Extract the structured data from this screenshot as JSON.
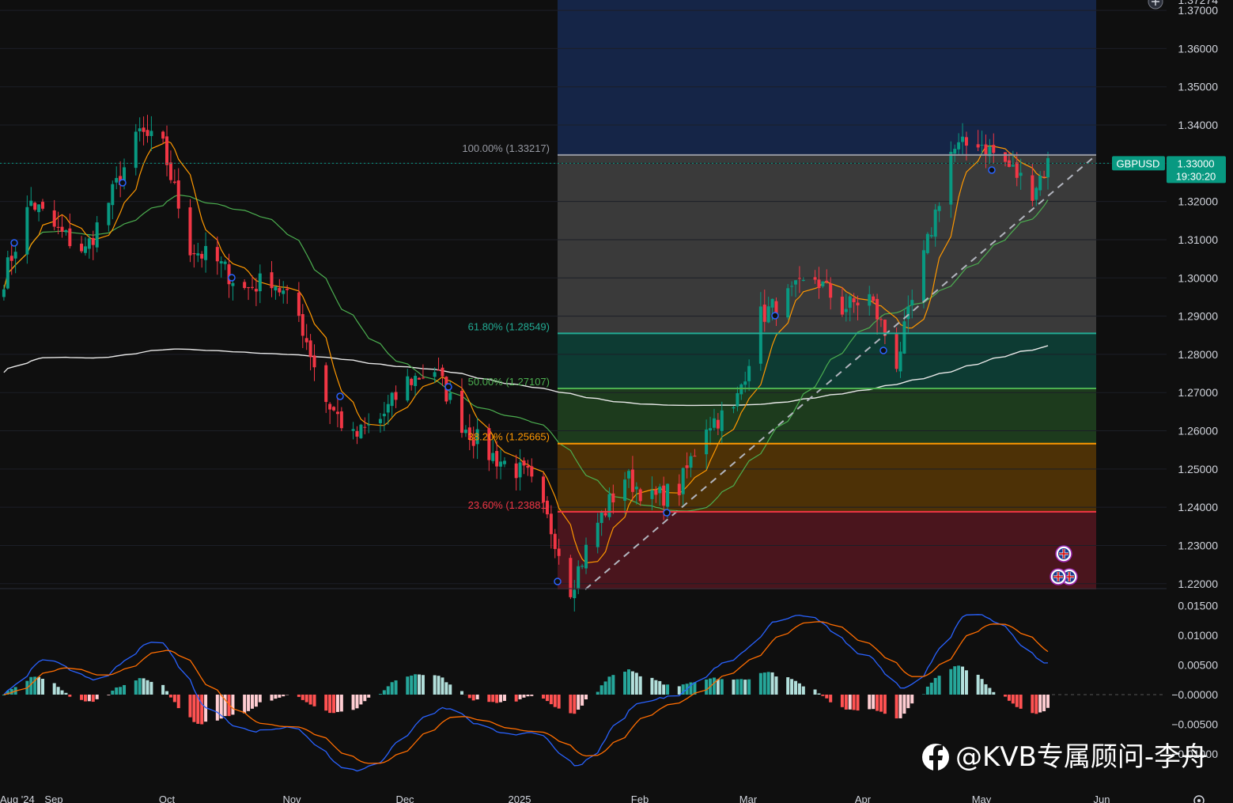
{
  "chart_data": {
    "type": "candlestick",
    "symbol": "GBPUSD",
    "price_axis": {
      "ticks": [
        "1.37274",
        "1.37000",
        "1.36000",
        "1.35000",
        "1.34000",
        "1.33000",
        "1.32000",
        "1.31000",
        "1.30000",
        "1.29000",
        "1.28000",
        "1.27000",
        "1.26000",
        "1.25000",
        "1.24000",
        "1.23000",
        "1.22000"
      ],
      "range": [
        1.2185,
        1.3725
      ]
    },
    "osc_axis": {
      "ticks": [
        "0.01500",
        "0.01000",
        "0.00500",
        "−0.00000",
        "−0.00500",
        "−0.01000"
      ],
      "range": [
        -0.016,
        0.016
      ]
    },
    "time_axis": [
      "Aug '24",
      "Sep",
      "Oct",
      "Nov",
      "Dec",
      "2025",
      "Feb",
      "Mar",
      "Apr",
      "May",
      "Jun"
    ],
    "current_price": {
      "symbol": "GBPUSD",
      "price": "1.33000",
      "countdown": "19:30:20"
    },
    "fib_levels": [
      {
        "label": "100.00% (1.33217)",
        "value": 1.33217,
        "color": "#9598a1"
      },
      {
        "label": "61.80% (1.28549)",
        "value": 1.28549,
        "color": "#22ab94"
      },
      {
        "label": "50.00% (1.27107)",
        "value": 1.27107,
        "color": "#4caf50"
      },
      {
        "label": "38.20% (1.25665)",
        "value": 1.25665,
        "color": "#ff9800"
      },
      {
        "label": "23.60% (1.23881)",
        "value": 1.23881,
        "color": "#f23645"
      }
    ],
    "key_path": [
      {
        "x": "2024-08-20",
        "y": 1.3
      },
      {
        "x": "2024-08-27",
        "y": 1.32
      },
      {
        "x": "2024-09-03",
        "y": 1.312
      },
      {
        "x": "2024-09-10",
        "y": 1.307
      },
      {
        "x": "2024-09-17",
        "y": 1.322
      },
      {
        "x": "2024-09-24",
        "y": 1.338
      },
      {
        "x": "2024-09-30",
        "y": 1.334
      },
      {
        "x": "2024-10-07",
        "y": 1.308
      },
      {
        "x": "2024-10-14",
        "y": 1.304
      },
      {
        "x": "2024-10-21",
        "y": 1.297
      },
      {
        "x": "2024-10-28",
        "y": 1.3
      },
      {
        "x": "2024-11-04",
        "y": 1.29
      },
      {
        "x": "2024-11-11",
        "y": 1.268
      },
      {
        "x": "2024-11-18",
        "y": 1.258
      },
      {
        "x": "2024-11-25",
        "y": 1.263
      },
      {
        "x": "2024-12-02",
        "y": 1.273
      },
      {
        "x": "2024-12-09",
        "y": 1.276
      },
      {
        "x": "2024-12-16",
        "y": 1.262
      },
      {
        "x": "2024-12-23",
        "y": 1.254
      },
      {
        "x": "2025-01-02",
        "y": 1.248
      },
      {
        "x": "2025-01-09",
        "y": 1.232
      },
      {
        "x": "2025-01-13",
        "y": 1.219
      },
      {
        "x": "2025-01-20",
        "y": 1.236
      },
      {
        "x": "2025-01-27",
        "y": 1.248
      },
      {
        "x": "2025-02-03",
        "y": 1.242
      },
      {
        "x": "2025-02-10",
        "y": 1.245
      },
      {
        "x": "2025-02-17",
        "y": 1.262
      },
      {
        "x": "2025-02-24",
        "y": 1.265
      },
      {
        "x": "2025-03-03",
        "y": 1.29
      },
      {
        "x": "2025-03-10",
        "y": 1.295
      },
      {
        "x": "2025-03-17",
        "y": 1.3
      },
      {
        "x": "2025-03-24",
        "y": 1.292
      },
      {
        "x": "2025-03-31",
        "y": 1.295
      },
      {
        "x": "2025-04-07",
        "y": 1.278
      },
      {
        "x": "2025-04-14",
        "y": 1.305
      },
      {
        "x": "2025-04-21",
        "y": 1.333
      },
      {
        "x": "2025-04-28",
        "y": 1.336
      },
      {
        "x": "2025-05-05",
        "y": 1.33
      },
      {
        "x": "2025-05-12",
        "y": 1.323
      },
      {
        "x": "2025-05-16",
        "y": 1.33
      }
    ],
    "histogram_peak_abs": 0.005,
    "colors": {
      "up": "#089981",
      "down": "#f23645",
      "ma_fast": "#ff9800",
      "ma_mid": "#4caf50",
      "ma_slow": "#e8e8e8",
      "macd": "#2962ff",
      "signal": "#ff6d00",
      "hist_up_strong": "#26a69a",
      "hist_up_weak": "#b2dfdb",
      "hist_down_strong": "#ff5252",
      "hist_down_weak": "#ffcdd2",
      "price_tag": "#089981",
      "zone_top": "#152547",
      "zone_100_618": "#3a3a3a",
      "zone_618_50": "#0d3b33",
      "zone_50_382": "#1d3b1d",
      "zone_382_236": "#4d3106",
      "zone_236_base": "#4a151d"
    }
  },
  "watermark": {
    "text": "@KVB专属顾问-李舟",
    "icon": "facebook-icon"
  },
  "icons": {
    "top_right": "add-icon",
    "bottom_right": "settings-icon",
    "event_markers": "uk-flag-icon"
  }
}
